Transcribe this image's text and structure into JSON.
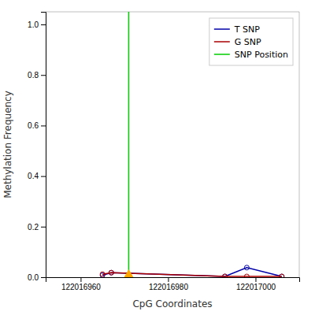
{
  "chart_data": {
    "type": "line",
    "xlabel": "CpG Coordinates",
    "ylabel": "Methylation Frequency",
    "x": [
      122016965,
      122016967,
      122016993,
      122016998,
      122017006
    ],
    "series": [
      {
        "name": "T SNP",
        "color": "#0000aa",
        "marker": "circle",
        "values": [
          0.008,
          0.018,
          0.003,
          0.038,
          0.003
        ]
      },
      {
        "name": "G SNP",
        "color": "#aa0000",
        "marker": "circle",
        "values": [
          0.012,
          0.018,
          0.003,
          0.003,
          0.003
        ]
      }
    ],
    "vlines": [
      {
        "name": "SNP Position",
        "x": 122016971,
        "color": "#00cc00"
      }
    ],
    "markers": [
      {
        "x": 122016971,
        "y": 0.003,
        "color": "#FFA500",
        "marker": "triangle"
      }
    ],
    "xlim": [
      122016952,
      122017010
    ],
    "ylim": [
      0.0,
      1.05
    ],
    "xticks": [
      122016960,
      122016980,
      122017000
    ],
    "yticks": [
      {
        "value": 0.0,
        "label": "0.0"
      },
      0.2,
      0.4,
      0.6,
      0.8,
      {
        "value": 1.0,
        "label": "1.0"
      }
    ],
    "grid": false,
    "legend": "upper right"
  }
}
